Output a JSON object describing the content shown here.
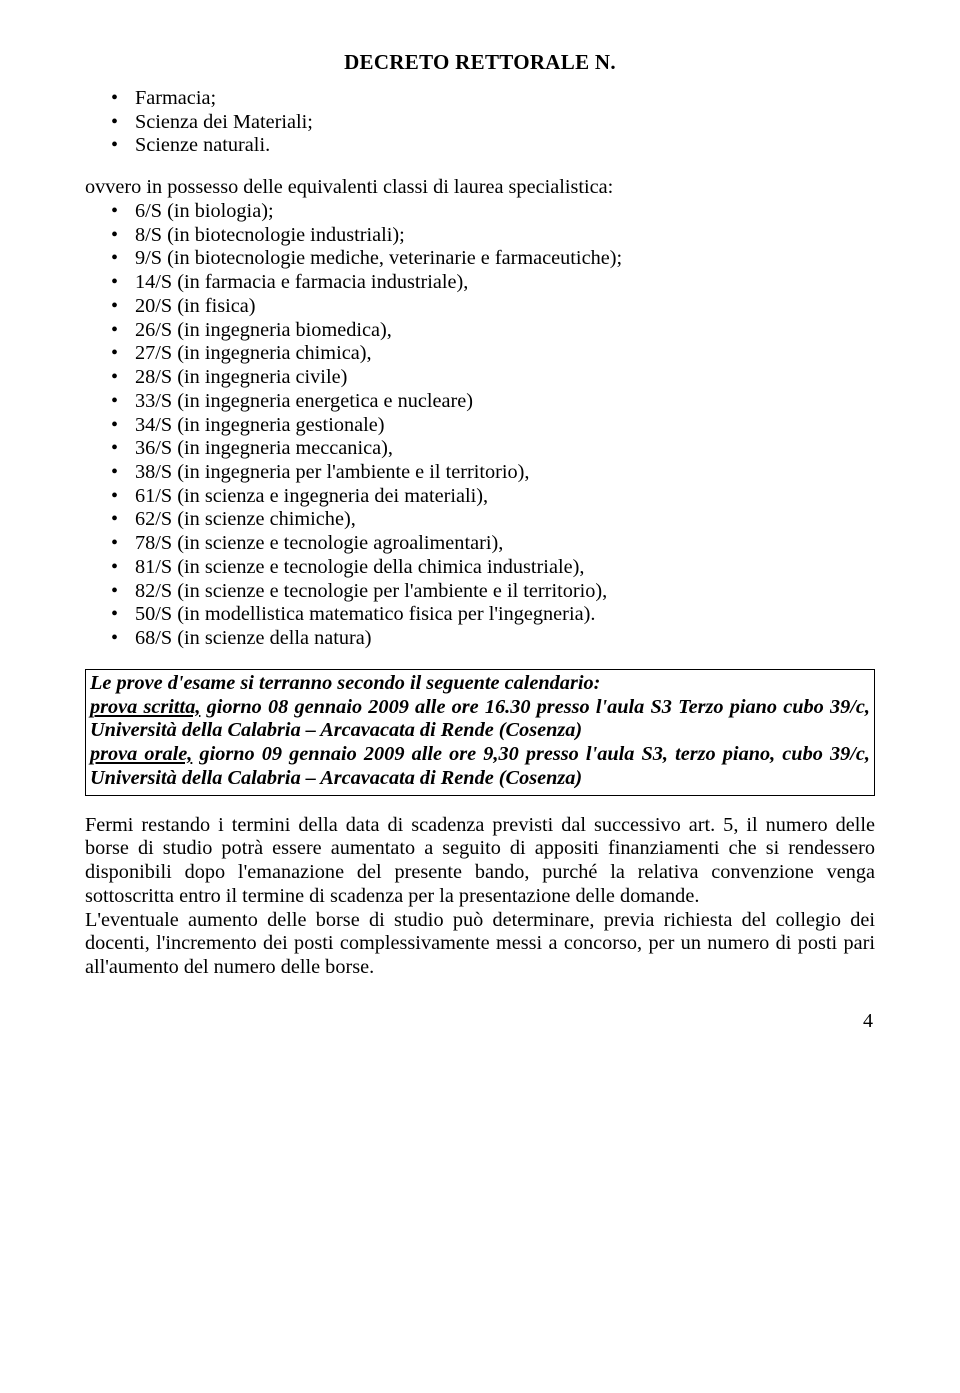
{
  "header": {
    "title": "DECRETO RETTORALE N."
  },
  "list1": {
    "items": [
      "Farmacia;",
      "Scienza dei Materiali;",
      "Scienze naturali."
    ]
  },
  "intro": {
    "text": "ovvero in possesso delle equivalenti classi di laurea specialistica:"
  },
  "list2": {
    "items": [
      "6/S (in biologia);",
      "8/S (in biotecnologie industriali);",
      "9/S (in biotecnologie mediche, veterinarie e farmaceutiche);",
      "14/S (in farmacia e farmacia industriale),",
      "20/S (in fisica)",
      "26/S (in ingegneria biomedica),",
      "27/S (in ingegneria chimica),",
      "28/S (in ingegneria civile)",
      "33/S (in ingegneria energetica e nucleare)",
      "34/S (in ingegneria gestionale)",
      "36/S (in ingegneria meccanica),",
      "38/S (in ingegneria per l'ambiente e il territorio),",
      "61/S (in scienza e ingegneria dei materiali),",
      "62/S (in scienze chimiche),",
      "78/S (in scienze e tecnologie agroalimentari),",
      "81/S (in scienze e tecnologie della chimica industriale),",
      "82/S (in scienze e tecnologie per l'ambiente e il territorio),",
      "50/S (in modellistica matematico fisica per l'ingegneria).",
      "68/S (in scienze della natura)"
    ]
  },
  "calendar": {
    "line1": "Le prove d'esame si terranno secondo il seguente calendario:",
    "line2a": "prova scritta,",
    "line2b": " giorno 08 gennaio 2009 alle ore 16.30 presso l'aula S3 Terzo piano cubo 39/c, Università della Calabria – Arcavacata di Rende (Cosenza)",
    "line3a": "prova orale,",
    "line3b": " giorno 09 gennaio 2009 alle ore 9,30 presso l'aula S3, terzo piano, cubo 39/c, Università della Calabria – Arcavacata di Rende (Cosenza)"
  },
  "para1": {
    "text": "Fermi restando i termini della data di scadenza previsti dal successivo art. 5, il numero delle borse di studio potrà essere aumentato a seguito di appositi finanziamenti che si rendessero disponibili dopo l'emanazione del presente bando, purché la relativa convenzione venga sottoscritta entro il termine di scadenza per la presentazione delle domande."
  },
  "para2": {
    "text": "L'eventuale aumento delle borse di studio può determinare, previa richiesta del collegio dei docenti, l'incremento dei posti complessivamente messi a concorso, per un numero di posti pari all'aumento del numero delle borse."
  },
  "pagenum": {
    "value": "4"
  }
}
